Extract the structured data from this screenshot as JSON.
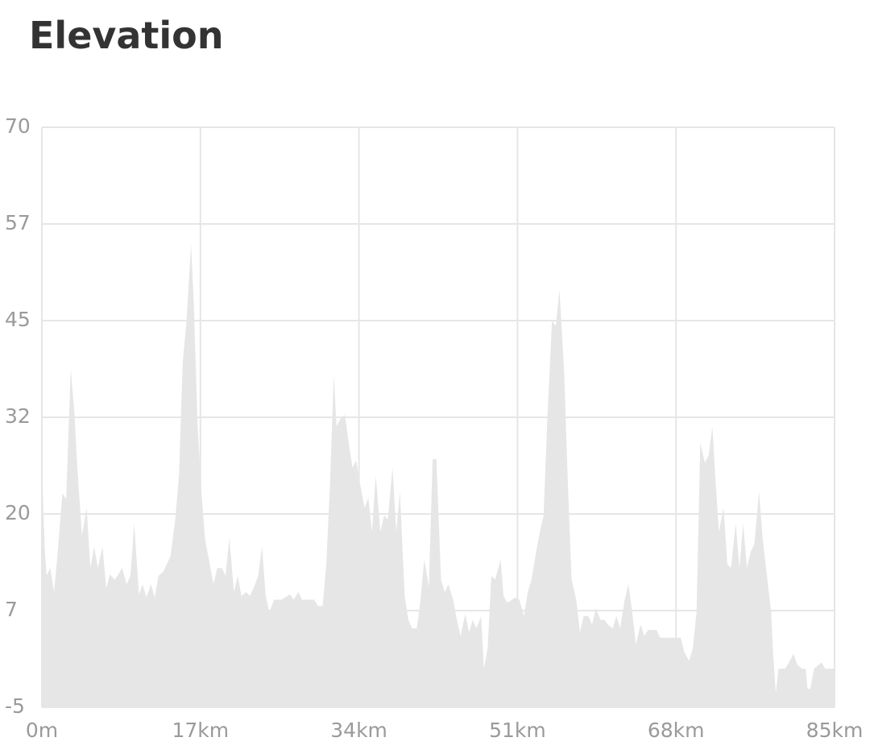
{
  "chart_data": {
    "type": "area",
    "title": "Elevation",
    "color": "#e6e6e6",
    "grid": true,
    "xlim": [
      0,
      85
    ],
    "xticks": [
      {
        "value": 0,
        "label": "0m"
      },
      {
        "value": 17,
        "label": "17km"
      },
      {
        "value": 34,
        "label": "34km"
      },
      {
        "value": 51,
        "label": "51km"
      },
      {
        "value": 68,
        "label": "68km"
      },
      {
        "value": 85,
        "label": "85km"
      }
    ],
    "ylim": [
      -5,
      70
    ],
    "yticks": [
      -5,
      {
        "value": 7.5,
        "label": "7"
      },
      20,
      {
        "value": 32.5,
        "label": "32"
      },
      45,
      {
        "value": 57.5,
        "label": "57"
      },
      70
    ],
    "x": [
      0,
      0.3,
      0.5,
      0.9,
      1.3,
      1.7,
      2.2,
      2.6,
      3.1,
      3.5,
      3.8,
      4.3,
      4.8,
      5.2,
      5.6,
      6.0,
      6.5,
      6.9,
      7.3,
      7.8,
      8.2,
      8.6,
      9.1,
      9.5,
      9.9,
      10.4,
      10.8,
      11.2,
      11.7,
      12.1,
      12.5,
      13.0,
      13.4,
      13.8,
      14.3,
      14.7,
      15.1,
      15.5,
      16.0,
      16.3,
      16.7,
      17.1,
      17.5,
      18.0,
      18.4,
      18.8,
      19.3,
      19.7,
      20.1,
      20.6,
      21.0,
      21.4,
      21.9,
      22.3,
      22.7,
      23.2,
      23.6,
      24.0,
      24.4,
      24.9,
      25.7,
      26.6,
      27.0,
      27.5,
      27.9,
      29.2,
      29.6,
      30.1,
      30.5,
      30.9,
      31.3,
      31.6,
      32.0,
      32.5,
      32.9,
      33.3,
      33.7,
      34.1,
      34.6,
      35.0,
      35.4,
      35.8,
      36.3,
      36.7,
      37.1,
      37.6,
      38.0,
      38.4,
      38.9,
      39.3,
      39.7,
      40.2,
      40.6,
      41.0,
      41.5,
      41.9,
      42.3,
      42.8,
      43.2,
      43.6,
      44.1,
      44.5,
      44.9,
      45.4,
      45.8,
      46.2,
      46.6,
      47.1,
      47.4,
      47.8,
      48.2,
      48.6,
      49.2,
      49.5,
      49.9,
      50.4,
      50.8,
      51.2,
      51.7,
      52.1,
      52.5,
      53.0,
      53.4,
      53.8,
      54.2,
      54.7,
      55.1,
      55.5,
      56.0,
      56.4,
      56.8,
      57.3,
      57.7,
      58.1,
      58.6,
      59.0,
      59.4,
      59.9,
      60.3,
      60.7,
      61.2,
      61.6,
      62.0,
      62.5,
      62.9,
      63.3,
      63.7,
      64.2,
      64.6,
      65.0,
      65.9,
      66.3,
      68.5,
      68.9,
      69.4,
      69.8,
      70.2,
      70.6,
      71.1,
      71.5,
      71.9,
      72.2,
      72.6,
      73.1,
      73.5,
      73.9,
      74.4,
      74.8,
      75.2,
      75.6,
      76.0,
      76.4,
      76.9,
      77.3,
      77.7,
      78.2,
      78.4,
      78.7,
      79.0,
      79.7,
      80.2,
      80.6,
      81.0,
      81.5,
      81.9,
      82.1,
      82.4,
      82.8,
      83.6,
      84.0,
      85.0
    ],
    "values": [
      26.3,
      15.6,
      12,
      13,
      9.9,
      15.1,
      22.7,
      21.9,
      38.8,
      32.8,
      26,
      17.2,
      20.8,
      13,
      15.8,
      13,
      15.8,
      10.4,
      12.2,
      11.5,
      12.2,
      13,
      10.9,
      12,
      18.8,
      9.6,
      10.9,
      9.2,
      10.9,
      9.2,
      12,
      12.5,
      13.5,
      14.6,
      19.3,
      25,
      39.6,
      44.8,
      54.9,
      46.9,
      31.3,
      22.9,
      16.7,
      13.5,
      10.9,
      13,
      13,
      12,
      16.9,
      9.9,
      12,
      9.4,
      9.9,
      9.4,
      10.4,
      12,
      15.8,
      9.4,
      7.3,
      8.9,
      8.9,
      9.6,
      8.9,
      9.9,
      8.9,
      8.9,
      8.1,
      8.1,
      13.5,
      24,
      38,
      31.3,
      32.3,
      32.8,
      29.2,
      26,
      26.9,
      24,
      20.8,
      22.1,
      17.7,
      25,
      17.7,
      19.8,
      19.3,
      26,
      17.7,
      22.9,
      9.4,
      6.3,
      5.2,
      5.2,
      8.9,
      14.1,
      10.6,
      27.1,
      27.1,
      11.5,
      9.9,
      10.9,
      8.9,
      6.3,
      4.2,
      7.1,
      4.7,
      6.3,
      5.2,
      6.8,
      0,
      2.6,
      12,
      11.5,
      14.1,
      9.4,
      8.5,
      8.9,
      9.2,
      8.9,
      6.8,
      9.9,
      11.5,
      15.1,
      17.7,
      19.8,
      32.3,
      45,
      44.3,
      49,
      38.5,
      24,
      11.5,
      8.9,
      4.7,
      6.8,
      6.8,
      5.7,
      7.8,
      6.3,
      6.3,
      5.7,
      5.2,
      6.8,
      5.2,
      8.9,
      10.9,
      7.3,
      3.1,
      5.7,
      4.2,
      5,
      5,
      4,
      4,
      2.1,
      1,
      2.6,
      7.3,
      29.2,
      26.6,
      27.6,
      31.3,
      25,
      17.7,
      20.8,
      13.5,
      13,
      18.8,
      13,
      18.8,
      13,
      15.1,
      16.1,
      22.9,
      16.7,
      12.5,
      7.3,
      2.1,
      -3.1,
      0,
      0,
      1,
      1.9,
      0.5,
      0,
      0,
      -2.6,
      -2.6,
      0,
      0.8,
      0,
      0
    ]
  }
}
